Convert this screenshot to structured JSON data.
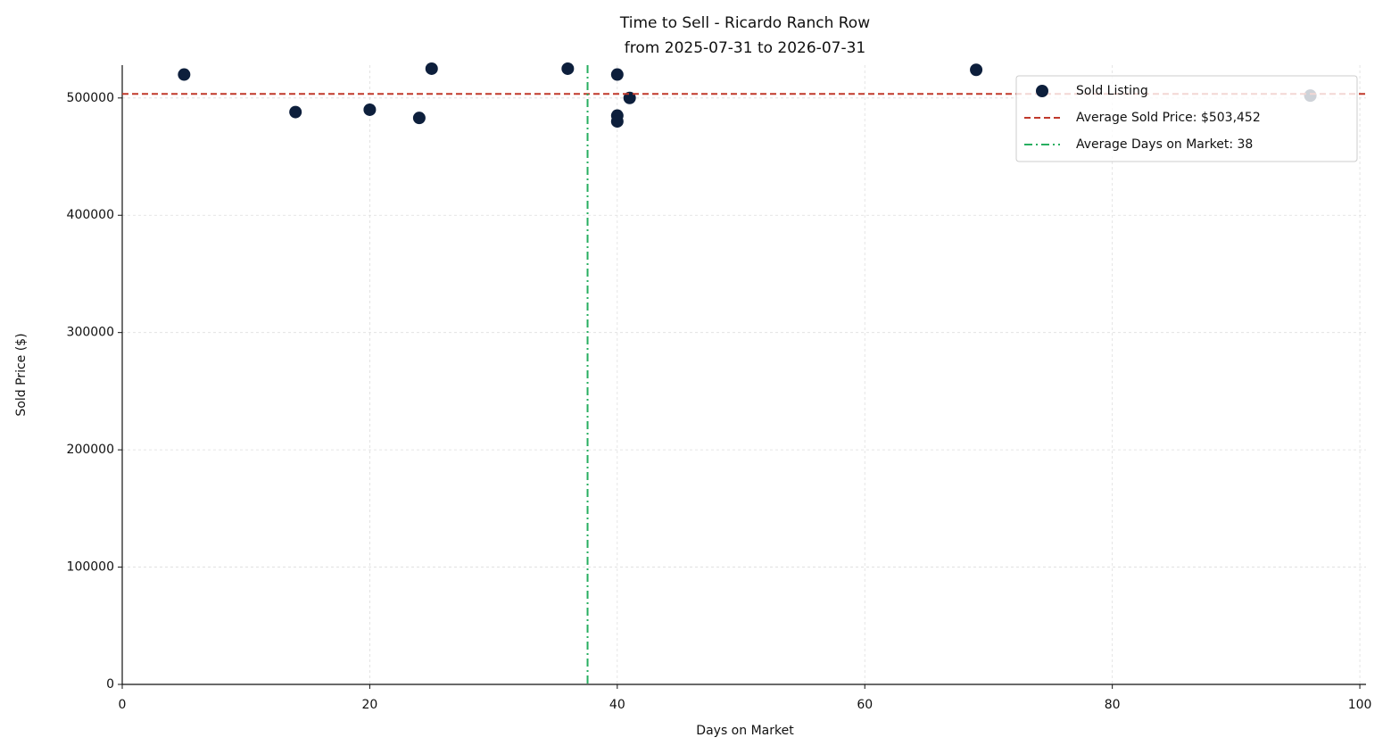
{
  "chart_data": {
    "type": "scatter",
    "title": "Time to Sell - Ricardo Ranch Row",
    "subtitle": "from 2025-07-31 to 2026-07-31",
    "x_label": "Days on Market",
    "y_label": "Sold Price ($)",
    "series": [
      {
        "name": "Sold Listing",
        "color": "#0d1f3c",
        "x": [
          5,
          14,
          20,
          24,
          25,
          36,
          40,
          40,
          40,
          41,
          69,
          96
        ],
        "values": [
          520000,
          488000,
          490000,
          483000,
          525000,
          525000,
          520000,
          485000,
          480000,
          500000,
          524000,
          502000
        ]
      }
    ],
    "reference_lines": [
      {
        "name": "Average Sold Price: $503,452",
        "axis": "y",
        "value": 503452,
        "color": "#c0392b",
        "style": "dashed"
      },
      {
        "name": "Average Days on Market: 38",
        "axis": "x",
        "value": 37.6,
        "color": "#27ae60",
        "style": "dashdot"
      }
    ],
    "xlim": [
      0,
      100.5
    ],
    "xticks": [
      0,
      20,
      40,
      60,
      80,
      100
    ],
    "ylim": [
      0,
      528000
    ],
    "yticks": [
      0,
      100000,
      200000,
      300000,
      400000,
      500000
    ],
    "grid": true,
    "legend": "upper right"
  }
}
